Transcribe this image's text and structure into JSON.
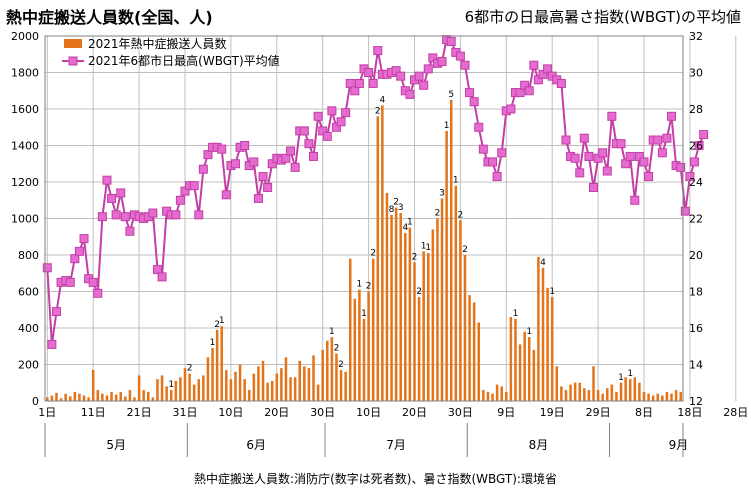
{
  "title_left": "熱中症搬送人員数(全国、人)",
  "title_right": "6都市の日最高暑さ指数(WBGT)の平均値",
  "footer": "熱中症搬送人員数:消防庁(数字は死者数)、暑さ指数(WBGT):環境省",
  "colors": {
    "bar": "#e3741a",
    "line": "#c23fa5",
    "marker": "#e56bd0",
    "grid": "#bfbfbf"
  },
  "chart_data": {
    "type": "bar+line",
    "x_start": "2021-05-01",
    "x_end": "2021-09-30",
    "x_tick_labels": [
      "1日",
      "11日",
      "21日",
      "31日",
      "10日",
      "20日",
      "30日",
      "10日",
      "20日",
      "30日",
      "9日",
      "19日",
      "29日",
      "8日",
      "18日",
      "28日"
    ],
    "month_labels": [
      "5月",
      "6月",
      "7月",
      "8月",
      "9月"
    ],
    "y_left": {
      "min": 0,
      "max": 2000,
      "ticks": [
        0,
        200,
        400,
        600,
        800,
        1000,
        1200,
        1400,
        1600,
        1800,
        2000
      ]
    },
    "y_right": {
      "min": 12,
      "max": 32,
      "ticks": [
        12,
        14,
        16,
        18,
        20,
        22,
        24,
        26,
        28,
        30,
        32
      ]
    },
    "legend_location": "top-left",
    "grid": true,
    "series": [
      {
        "name": "2021年熱中症搬送人員数",
        "type": "bar",
        "axis": "left",
        "values": [
          20,
          30,
          45,
          15,
          40,
          25,
          50,
          40,
          30,
          20,
          170,
          60,
          40,
          30,
          50,
          35,
          50,
          25,
          60,
          20,
          140,
          60,
          50,
          20,
          120,
          140,
          80,
          60,
          110,
          130,
          180,
          150,
          90,
          120,
          140,
          240,
          290,
          390,
          410,
          170,
          120,
          160,
          200,
          120,
          60,
          150,
          190,
          220,
          100,
          110,
          150,
          180,
          240,
          130,
          130,
          220,
          190,
          180,
          250,
          90,
          280,
          330,
          350,
          260,
          170,
          160,
          780,
          560,
          610,
          450,
          600,
          780,
          1560,
          1620,
          1140,
          1020,
          1060,
          1030,
          920,
          950,
          760,
          570,
          820,
          810,
          940,
          1000,
          1110,
          1480,
          1650,
          1180,
          990,
          800,
          580,
          540,
          430,
          60,
          50,
          40,
          90,
          80,
          50,
          460,
          450,
          310,
          380,
          350,
          280,
          790,
          730,
          620,
          570,
          190,
          80,
          60,
          90,
          100,
          100,
          70,
          60,
          190,
          60,
          40,
          70,
          90,
          50,
          100,
          130,
          120,
          130,
          100,
          50,
          40,
          30,
          40,
          30,
          50,
          40,
          60,
          50
        ],
        "death_labels": [
          {
            "day": 36,
            "text": "1"
          },
          {
            "day": 37,
            "text": "2"
          },
          {
            "day": 38,
            "text": "1"
          },
          {
            "day": 31,
            "text": "2"
          },
          {
            "day": 27,
            "text": "1"
          },
          {
            "day": 62,
            "text": "1"
          },
          {
            "day": 63,
            "text": "2"
          },
          {
            "day": 64,
            "text": "2"
          },
          {
            "day": 68,
            "text": "1"
          },
          {
            "day": 69,
            "text": "1"
          },
          {
            "day": 70,
            "text": "2"
          },
          {
            "day": 71,
            "text": "2"
          },
          {
            "day": 72,
            "text": "2"
          },
          {
            "day": 73,
            "text": "4"
          },
          {
            "day": 75,
            "text": "8"
          },
          {
            "day": 76,
            "text": "2"
          },
          {
            "day": 77,
            "text": "3"
          },
          {
            "day": 78,
            "text": "4"
          },
          {
            "day": 79,
            "text": "1"
          },
          {
            "day": 80,
            "text": "2"
          },
          {
            "day": 81,
            "text": "2"
          },
          {
            "day": 82,
            "text": "1"
          },
          {
            "day": 83,
            "text": "1"
          },
          {
            "day": 85,
            "text": "2"
          },
          {
            "day": 86,
            "text": "3"
          },
          {
            "day": 87,
            "text": "1"
          },
          {
            "day": 88,
            "text": "5"
          },
          {
            "day": 89,
            "text": "1"
          },
          {
            "day": 90,
            "text": "2"
          },
          {
            "day": 91,
            "text": "2"
          },
          {
            "day": 102,
            "text": "1"
          },
          {
            "day": 105,
            "text": "1"
          },
          {
            "day": 108,
            "text": "4"
          },
          {
            "day": 110,
            "text": "1"
          },
          {
            "day": 125,
            "text": "1"
          },
          {
            "day": 127,
            "text": "1"
          }
        ]
      },
      {
        "name": "2021年6都市日最高(WBGT)平均値",
        "type": "line",
        "axis": "right",
        "values": [
          19.3,
          15.1,
          16.9,
          18.5,
          18.6,
          18.5,
          19.8,
          20.2,
          20.9,
          18.7,
          18.5,
          17.9,
          22.1,
          24.1,
          23.1,
          22.2,
          23.4,
          22.1,
          21.3,
          22.2,
          22.1,
          22.0,
          22.1,
          22.3,
          19.2,
          18.8,
          22.4,
          22.2,
          22.2,
          23.0,
          23.5,
          23.8,
          23.8,
          22.2,
          24.7,
          25.5,
          25.9,
          25.9,
          25.8,
          23.3,
          24.9,
          25.0,
          25.9,
          26.0,
          24.9,
          25.1,
          23.1,
          24.3,
          23.7,
          25.0,
          25.3,
          25.2,
          25.3,
          25.7,
          24.8,
          26.8,
          26.8,
          26.1,
          25.4,
          27.6,
          26.8,
          26.5,
          27.9,
          27.0,
          27.3,
          27.8,
          29.4,
          29.0,
          29.4,
          30.2,
          30.0,
          29.4,
          31.2,
          29.9,
          29.9,
          30.0,
          30.1,
          29.8,
          29.0,
          28.8,
          29.6,
          29.8,
          29.3,
          30.2,
          30.8,
          30.5,
          30.6,
          31.8,
          31.7,
          31.1,
          30.9,
          30.4,
          28.9,
          28.4,
          27.0,
          25.8,
          25.1,
          25.1,
          24.3,
          25.6,
          27.9,
          28.0,
          28.9,
          28.9,
          29.3,
          29.0,
          30.4,
          29.6,
          29.9,
          30.2,
          29.8,
          29.6,
          29.4,
          26.3,
          25.4,
          25.3,
          24.5,
          26.4,
          25.4,
          23.7,
          25.3,
          25.6,
          24.6,
          27.6,
          26.1,
          26.1,
          25.0,
          25.4,
          23.0,
          25.4,
          25.1,
          24.3,
          26.3,
          26.3,
          25.6,
          26.4,
          27.6,
          24.9,
          24.8,
          22.4,
          24.3,
          25.1,
          26.0,
          26.6
        ]
      }
    ]
  }
}
